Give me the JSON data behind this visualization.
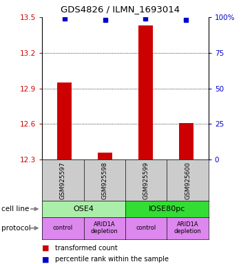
{
  "title": "GDS4826 / ILMN_1693014",
  "samples": [
    "GSM925597",
    "GSM925598",
    "GSM925599",
    "GSM925600"
  ],
  "bar_values": [
    12.95,
    12.36,
    13.43,
    12.61
  ],
  "dot_percentiles": [
    99,
    98,
    99,
    98
  ],
  "bar_color": "#cc0000",
  "dot_color": "#0000cc",
  "ylim_left": [
    12.3,
    13.5
  ],
  "ylim_right": [
    0,
    100
  ],
  "yticks_left": [
    12.3,
    12.6,
    12.9,
    13.2,
    13.5
  ],
  "yticks_right": [
    0,
    25,
    50,
    75,
    100
  ],
  "ytick_labels_left": [
    "12.3",
    "12.6",
    "12.9",
    "13.2",
    "13.5"
  ],
  "ytick_labels_right": [
    "0",
    "25",
    "50",
    "75",
    "100%"
  ],
  "cell_line_labels": [
    "OSE4",
    "IOSE80pc"
  ],
  "cell_line_colors": [
    "#aaeeaa",
    "#33dd33"
  ],
  "cell_line_spans": [
    [
      0,
      2
    ],
    [
      2,
      4
    ]
  ],
  "protocol_labels": [
    "control",
    "ARID1A\ndepletion",
    "control",
    "ARID1A\ndepletion"
  ],
  "protocol_color": "#dd88ee",
  "legend_bar_label": "transformed count",
  "legend_dot_label": "percentile rank within the sample",
  "sample_box_color": "#cccccc",
  "bar_bottom": 12.3,
  "bar_width": 0.35,
  "grid_lines": [
    12.6,
    12.9,
    13.2
  ]
}
